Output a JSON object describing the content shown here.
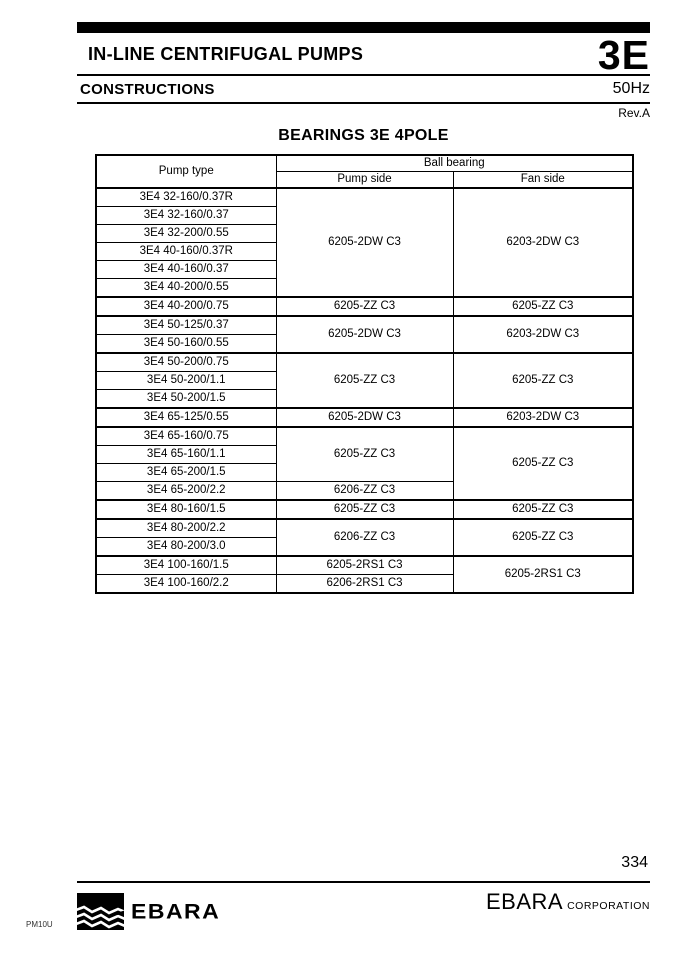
{
  "header": {
    "product_line": "IN-LINE CENTRIFUGAL PUMPS",
    "model_code": "3E",
    "section": "CONSTRUCTIONS",
    "frequency": "50Hz",
    "revision": "Rev.A"
  },
  "table": {
    "title": "BEARINGS 3E 4POLE",
    "col_pump_type": "Pump type",
    "col_ball_bearing": "Ball bearing",
    "col_pump_side": "Pump side",
    "col_fan_side": "Fan side",
    "rows": [
      {
        "pump_type": "3E4 32-160/0.37R",
        "pump_side": {
          "value": "6205-2DW C3",
          "rowspan": 6
        },
        "fan_side": {
          "value": "6203-2DW C3",
          "rowspan": 6
        },
        "group_start": true
      },
      {
        "pump_type": "3E4 32-160/0.37"
      },
      {
        "pump_type": "3E4 32-200/0.55"
      },
      {
        "pump_type": "3E4 40-160/0.37R"
      },
      {
        "pump_type": "3E4 40-160/0.37"
      },
      {
        "pump_type": "3E4 40-200/0.55"
      },
      {
        "pump_type": "3E4 40-200/0.75",
        "pump_side": {
          "value": "6205-ZZ C3",
          "rowspan": 1
        },
        "fan_side": {
          "value": "6205-ZZ C3",
          "rowspan": 1
        },
        "group_start": true
      },
      {
        "pump_type": "3E4 50-125/0.37",
        "pump_side": {
          "value": "6205-2DW C3",
          "rowspan": 2
        },
        "fan_side": {
          "value": "6203-2DW C3",
          "rowspan": 2
        },
        "group_start": true
      },
      {
        "pump_type": "3E4 50-160/0.55"
      },
      {
        "pump_type": "3E4 50-200/0.75",
        "pump_side": {
          "value": "6205-ZZ C3",
          "rowspan": 3
        },
        "fan_side": {
          "value": "6205-ZZ C3",
          "rowspan": 3
        },
        "group_start": true
      },
      {
        "pump_type": "3E4 50-200/1.1"
      },
      {
        "pump_type": "3E4 50-200/1.5"
      },
      {
        "pump_type": "3E4 65-125/0.55",
        "pump_side": {
          "value": "6205-2DW C3",
          "rowspan": 1
        },
        "fan_side": {
          "value": "6203-2DW C3",
          "rowspan": 1
        },
        "group_start": true
      },
      {
        "pump_type": "3E4 65-160/0.75",
        "pump_side": {
          "value": "6205-ZZ C3",
          "rowspan": 3
        },
        "fan_side": {
          "value": "6205-ZZ C3",
          "rowspan": 4
        },
        "group_start": true
      },
      {
        "pump_type": "3E4 65-160/1.1"
      },
      {
        "pump_type": "3E4 65-200/1.5"
      },
      {
        "pump_type": "3E4 65-200/2.2",
        "pump_side": {
          "value": "6206-ZZ C3",
          "rowspan": 1
        }
      },
      {
        "pump_type": "3E4 80-160/1.5",
        "pump_side": {
          "value": "6205-ZZ C3",
          "rowspan": 1
        },
        "fan_side": {
          "value": "6205-ZZ C3",
          "rowspan": 1
        },
        "group_start": true
      },
      {
        "pump_type": "3E4 80-200/2.2",
        "pump_side": {
          "value": "6206-ZZ C3",
          "rowspan": 2
        },
        "fan_side": {
          "value": "6205-ZZ C3",
          "rowspan": 2
        },
        "group_start": true
      },
      {
        "pump_type": "3E4 80-200/3.0"
      },
      {
        "pump_type": "3E4 100-160/1.5",
        "pump_side": {
          "value": "6205-2RS1 C3",
          "rowspan": 1
        },
        "fan_side": {
          "value": "6205-2RS1 C3",
          "rowspan": 2
        },
        "group_start": true
      },
      {
        "pump_type": "3E4 100-160/2.2",
        "pump_side": {
          "value": "6206-2RS1 C3",
          "rowspan": 1
        }
      }
    ]
  },
  "footer": {
    "page_number": "334",
    "logo_text": "EBARA",
    "company_name": "EBARA",
    "company_suffix": "CORPORATION",
    "doc_code": "PM10U"
  }
}
